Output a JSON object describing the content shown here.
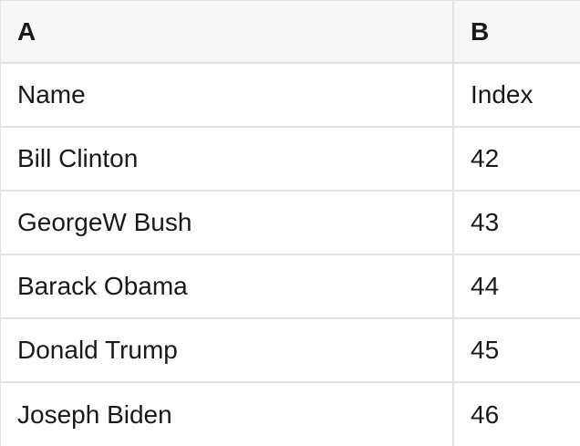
{
  "table": {
    "headers": [
      "A",
      "B"
    ],
    "rows": [
      {
        "a": "Name",
        "b": "Index"
      },
      {
        "a": "Bill Clinton",
        "b": "42"
      },
      {
        "a": "GeorgeW Bush",
        "b": "43"
      },
      {
        "a": "Barack Obama",
        "b": "44"
      },
      {
        "a": "Donald Trump",
        "b": "45"
      },
      {
        "a": "Joseph Biden",
        "b": "46"
      }
    ],
    "colors": {
      "header_bg": "#f7f7f7",
      "row_bg": "#ffffff",
      "border": "#e2e2e2",
      "text": "#1a1a1a"
    }
  }
}
